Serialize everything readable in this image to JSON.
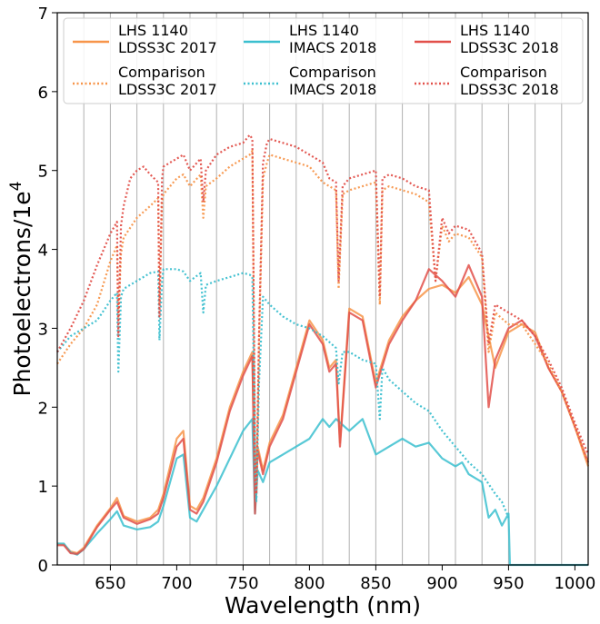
{
  "chart_data": {
    "type": "line",
    "xlabel": "Wavelength (nm)",
    "ylabel": "Photoelectrons/1e",
    "ylabel_sup": "4",
    "xlim": [
      610,
      1010
    ],
    "ylim": [
      0,
      7
    ],
    "xticks": [
      650,
      700,
      750,
      800,
      850,
      900,
      950,
      1000
    ],
    "yticks": [
      0,
      1,
      2,
      3,
      4,
      5,
      6,
      7
    ],
    "vlines": [
      630,
      650,
      670,
      690,
      710,
      730,
      750,
      770,
      790,
      810,
      830,
      850,
      870,
      890,
      910,
      930,
      950,
      970,
      990
    ],
    "grid": "vertical lines every 20 nm",
    "legend_position": "top",
    "series": [
      {
        "name_line1": "LHS 1140",
        "name_line2": "LDSS3C 2017",
        "color": "#f7954a",
        "style": "solid",
        "x": [
          610,
          615,
          620,
          625,
          630,
          640,
          650,
          655,
          660,
          670,
          680,
          686,
          690,
          700,
          705,
          710,
          715,
          720,
          730,
          740,
          750,
          757,
          759,
          761,
          765,
          770,
          780,
          790,
          800,
          810,
          815,
          820,
          823,
          830,
          840,
          850,
          860,
          870,
          880,
          890,
          900,
          910,
          920,
          930,
          940,
          950,
          960,
          970,
          980,
          990,
          1000,
          1010
        ],
        "y": [
          0.27,
          0.26,
          0.17,
          0.15,
          0.22,
          0.5,
          0.72,
          0.85,
          0.62,
          0.55,
          0.6,
          0.7,
          0.9,
          1.6,
          1.7,
          0.75,
          0.7,
          0.85,
          1.35,
          2.0,
          2.45,
          2.7,
          0.7,
          1.5,
          1.2,
          1.55,
          1.9,
          2.5,
          3.1,
          2.85,
          2.5,
          2.6,
          1.55,
          3.25,
          3.15,
          2.3,
          2.85,
          3.15,
          3.35,
          3.5,
          3.55,
          3.45,
          3.65,
          3.3,
          2.5,
          2.95,
          3.05,
          2.95,
          2.5,
          2.2,
          1.75,
          1.25
        ]
      },
      {
        "name_line1": "LHS 1140",
        "name_line2": "IMACS 2018",
        "color": "#3bbfcf",
        "style": "solid",
        "x": [
          610,
          615,
          620,
          625,
          630,
          640,
          650,
          655,
          660,
          670,
          680,
          686,
          690,
          700,
          705,
          710,
          715,
          720,
          730,
          740,
          750,
          757,
          759,
          761,
          765,
          770,
          780,
          790,
          800,
          810,
          815,
          820,
          830,
          840,
          850,
          860,
          870,
          880,
          890,
          900,
          910,
          915,
          920,
          930,
          935,
          940,
          945,
          950,
          951,
          960,
          970,
          980,
          990,
          1000,
          1010
        ],
        "y": [
          0.27,
          0.27,
          0.16,
          0.13,
          0.2,
          0.4,
          0.58,
          0.68,
          0.5,
          0.45,
          0.48,
          0.55,
          0.75,
          1.35,
          1.4,
          0.6,
          0.55,
          0.7,
          1.0,
          1.35,
          1.7,
          1.85,
          0.65,
          1.2,
          1.05,
          1.3,
          1.4,
          1.5,
          1.6,
          1.85,
          1.75,
          1.85,
          1.7,
          1.85,
          1.4,
          1.5,
          1.6,
          1.5,
          1.55,
          1.35,
          1.25,
          1.3,
          1.15,
          1.05,
          0.6,
          0.7,
          0.5,
          0.65,
          0.0,
          0.0,
          0.0,
          0.0,
          0.0,
          0.0,
          0.0
        ]
      },
      {
        "name_line1": "LHS 1140",
        "name_line2": "LDSS3C 2018",
        "color": "#e2504a",
        "style": "solid",
        "x": [
          610,
          615,
          620,
          625,
          630,
          640,
          650,
          655,
          660,
          670,
          680,
          686,
          690,
          700,
          705,
          710,
          715,
          720,
          730,
          740,
          750,
          757,
          759,
          761,
          765,
          770,
          780,
          790,
          800,
          810,
          815,
          820,
          823,
          830,
          840,
          850,
          860,
          870,
          880,
          890,
          900,
          910,
          920,
          930,
          935,
          940,
          950,
          960,
          970,
          980,
          990,
          1000,
          1010
        ],
        "y": [
          0.25,
          0.25,
          0.15,
          0.14,
          0.2,
          0.48,
          0.7,
          0.8,
          0.6,
          0.52,
          0.58,
          0.65,
          0.85,
          1.5,
          1.6,
          0.7,
          0.65,
          0.8,
          1.3,
          1.95,
          2.4,
          2.65,
          0.65,
          1.45,
          1.15,
          1.5,
          1.85,
          2.45,
          3.05,
          2.8,
          2.45,
          2.55,
          1.5,
          3.2,
          3.1,
          2.25,
          2.8,
          3.1,
          3.35,
          3.75,
          3.6,
          3.4,
          3.8,
          3.4,
          2.0,
          2.6,
          3.0,
          3.1,
          2.9,
          2.5,
          2.2,
          1.75,
          1.3
        ]
      },
      {
        "name_line1": "Comparison",
        "name_line2": "LDSS3C 2017",
        "color": "#f7954a",
        "style": "dotted",
        "x": [
          610,
          620,
          630,
          640,
          650,
          655,
          656,
          658,
          660,
          670,
          680,
          686,
          687,
          689,
          690,
          700,
          705,
          710,
          718,
          720,
          722,
          730,
          740,
          750,
          755,
          757,
          759,
          760,
          762,
          765,
          768,
          770,
          780,
          790,
          800,
          810,
          820,
          822,
          825,
          830,
          840,
          850,
          853,
          855,
          860,
          870,
          880,
          890,
          895,
          900,
          905,
          910,
          920,
          930,
          935,
          940,
          950,
          960,
          970,
          980,
          990,
          1000,
          1010
        ],
        "y": [
          2.55,
          2.8,
          3.0,
          3.3,
          3.85,
          4.05,
          3.1,
          3.95,
          4.15,
          4.4,
          4.55,
          4.65,
          3.3,
          4.6,
          4.7,
          4.9,
          4.95,
          4.8,
          4.95,
          4.4,
          4.8,
          4.9,
          5.05,
          5.15,
          5.2,
          5.25,
          1.5,
          0.9,
          2.8,
          4.9,
          5.1,
          5.2,
          5.15,
          5.1,
          5.05,
          4.85,
          4.75,
          3.5,
          4.7,
          4.75,
          4.8,
          4.85,
          3.3,
          4.75,
          4.8,
          4.75,
          4.7,
          4.6,
          3.6,
          4.3,
          4.1,
          4.2,
          4.15,
          3.9,
          2.7,
          3.2,
          3.05,
          3.05,
          2.8,
          2.55,
          2.2,
          1.75,
          1.3
        ]
      },
      {
        "name_line1": "Comparison",
        "name_line2": "IMACS 2018",
        "color": "#3bbfcf",
        "style": "dotted",
        "x": [
          610,
          620,
          630,
          640,
          650,
          655,
          656,
          658,
          660,
          670,
          680,
          686,
          687,
          689,
          690,
          700,
          705,
          710,
          718,
          720,
          722,
          730,
          740,
          750,
          755,
          757,
          759,
          760,
          762,
          765,
          770,
          780,
          790,
          800,
          810,
          820,
          822,
          825,
          830,
          840,
          850,
          853,
          855,
          860,
          870,
          880,
          890,
          900,
          910,
          920,
          930,
          940,
          945,
          950
        ],
        "y": [
          2.7,
          2.9,
          3.0,
          3.1,
          3.35,
          3.45,
          2.45,
          3.4,
          3.5,
          3.6,
          3.7,
          3.72,
          2.85,
          3.6,
          3.75,
          3.75,
          3.72,
          3.6,
          3.7,
          3.2,
          3.55,
          3.6,
          3.65,
          3.7,
          3.68,
          3.65,
          1.3,
          0.8,
          2.3,
          3.4,
          3.3,
          3.15,
          3.05,
          3.0,
          2.9,
          2.75,
          2.3,
          2.7,
          2.7,
          2.6,
          2.55,
          1.85,
          2.5,
          2.35,
          2.2,
          2.05,
          1.95,
          1.7,
          1.5,
          1.3,
          1.15,
          0.9,
          0.8,
          0.6
        ]
      },
      {
        "name_line1": "Comparison",
        "name_line2": "LDSS3C 2018",
        "color": "#e2504a",
        "style": "dotted",
        "x": [
          610,
          620,
          630,
          640,
          650,
          655,
          656,
          658,
          660,
          665,
          670,
          675,
          680,
          686,
          687,
          689,
          690,
          695,
          700,
          705,
          710,
          718,
          720,
          722,
          730,
          740,
          750,
          755,
          757,
          759,
          760,
          762,
          765,
          768,
          770,
          780,
          790,
          800,
          810,
          815,
          820,
          822,
          825,
          830,
          840,
          850,
          853,
          855,
          860,
          870,
          880,
          890,
          895,
          900,
          905,
          910,
          920,
          930,
          935,
          940,
          950,
          960,
          970,
          980,
          990,
          1000,
          1010
        ],
        "y": [
          2.7,
          3.0,
          3.35,
          3.8,
          4.2,
          4.35,
          2.9,
          4.3,
          4.55,
          4.9,
          5.0,
          5.05,
          4.95,
          4.85,
          3.15,
          4.9,
          5.05,
          5.1,
          5.15,
          5.2,
          5.0,
          5.15,
          4.6,
          5.0,
          5.2,
          5.3,
          5.35,
          5.45,
          5.4,
          1.4,
          0.9,
          2.9,
          5.1,
          5.35,
          5.4,
          5.35,
          5.3,
          5.2,
          5.1,
          4.9,
          4.85,
          3.6,
          4.8,
          4.9,
          4.95,
          5.0,
          3.4,
          4.9,
          4.95,
          4.9,
          4.8,
          4.75,
          3.6,
          4.4,
          4.2,
          4.3,
          4.25,
          3.95,
          2.8,
          3.3,
          3.2,
          3.1,
          2.9,
          2.6,
          2.25,
          1.8,
          1.4
        ]
      }
    ]
  }
}
